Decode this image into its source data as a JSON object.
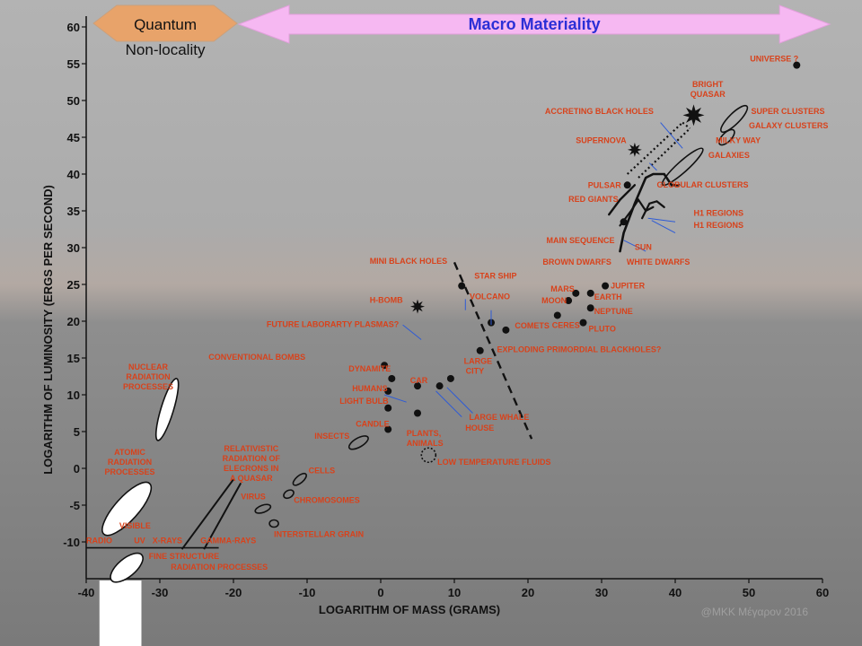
{
  "chart_data": {
    "type": "scatter",
    "title": "",
    "xlabel": "LOGARITHM OF MASS (GRAMS)",
    "ylabel": "LOGARITHM OF LUMINOSITY (ERGS PER SECOND)",
    "xlim": [
      -40,
      60
    ],
    "ylim": [
      -15,
      60
    ],
    "x_ticks": [
      "-40",
      "-30",
      "-20",
      "-10",
      "0",
      "10",
      "20",
      "30",
      "40",
      "50",
      "60"
    ],
    "y_ticks": [
      "-10",
      "-5",
      "0",
      "5",
      "10",
      "15",
      "20",
      "25",
      "30",
      "35",
      "40",
      "45",
      "50",
      "55",
      "60"
    ],
    "banners": [
      {
        "label_line1": "Quantum",
        "label_line2": "Non-locality",
        "color": "#e8a36a",
        "x_range": [
          -40,
          -19.5
        ]
      },
      {
        "label_line1": "Macro Materiality",
        "label_line2": "",
        "color": "#f6b8f2",
        "x_range": [
          -20,
          61
        ]
      }
    ],
    "points": [
      {
        "label": "UNIVERSE ?",
        "x": 56.5,
        "y": 54.8
      },
      {
        "label": "PULSAR",
        "x": 33.5,
        "y": 38.5
      },
      {
        "label": "SUN",
        "x": 33.0,
        "y": 33.5
      },
      {
        "label": "STAR SHIP",
        "x": 11.0,
        "y": 24.8
      },
      {
        "label": "VOLCANO",
        "x": 15.0,
        "y": 19.8
      },
      {
        "label": "COMETS",
        "x": 17.0,
        "y": 18.8
      },
      {
        "label": "LARGE CITY",
        "x": 13.5,
        "y": 16.0
      },
      {
        "label": "MARS",
        "x": 26.5,
        "y": 23.8
      },
      {
        "label": "MOON",
        "x": 25.5,
        "y": 22.8
      },
      {
        "label": "JUPITER",
        "x": 30.5,
        "y": 24.8
      },
      {
        "label": "EARTH",
        "x": 28.5,
        "y": 23.8
      },
      {
        "label": "NEPTUNE",
        "x": 28.5,
        "y": 21.8
      },
      {
        "label": "CERES",
        "x": 24.0,
        "y": 20.8
      },
      {
        "label": "PLUTO",
        "x": 27.5,
        "y": 19.8
      },
      {
        "label": "DYNAMITE",
        "x": 1.5,
        "y": 12.2
      },
      {
        "label": "CONVENTIONAL BOMBS",
        "x": 0.5,
        "y": 14.0
      },
      {
        "label": "CAR",
        "x": 5.0,
        "y": 11.2
      },
      {
        "label": "HUMANS",
        "x": 1.0,
        "y": 10.5
      },
      {
        "label": "LARGE WHALE",
        "x": 9.5,
        "y": 12.2
      },
      {
        "label": "HOUSE",
        "x": 8.0,
        "y": 11.2
      },
      {
        "label": "LIGHT BULB",
        "x": 1.0,
        "y": 8.2
      },
      {
        "label": "CANDLE",
        "x": 1.0,
        "y": 5.3
      },
      {
        "label": "PLANTS, ANIMALS",
        "x": 5.0,
        "y": 7.5
      }
    ],
    "series": [
      {
        "name": "",
        "type": "line",
        "x": [
          10,
          20.5
        ],
        "y": [
          28,
          4
        ]
      }
    ],
    "annotations": [
      "BRIGHT QUASAR",
      "SUPER CLUSTERS",
      "GALAXY CLUSTERS",
      "ACCRETING BLACK HOLES",
      "SUPERNOVA",
      "MILKY WAY",
      "GALAXIES",
      "GLOBULAR CLUSTERS",
      "RED GIANTS",
      "H1 REGIONS",
      "H1 REGIONS",
      "MAIN SEQUENCE",
      "BROWN DWARFS",
      "WHITE DWARFS",
      "MINI BLACK HOLES",
      "H-BOMB",
      "FUTURE LABORARTY PLASMAS?",
      "EXPLODING PRIMORDIAL BLACKHOLES?",
      "LOW TEMPERATURE FLUIDS",
      "INSECTS",
      "CELLS",
      "CHROMOSOMES",
      "VIRUS",
      "INTERSTELLAR GRAIN",
      "RELATIVISTIC RADIATION OF ELECRONS IN A QUASAR",
      "NUCLEAR RADIATION PROCESSES",
      "ATOMIC RADIATION PROCESSES",
      "VISIBLE",
      "RADIO",
      "UV",
      "X-RAYS",
      "GAMMA-RAYS",
      "FINE STRUCTURE",
      "RADIATION PROCESSES"
    ],
    "watermark": "@MKK Μέγαρον 2016"
  }
}
